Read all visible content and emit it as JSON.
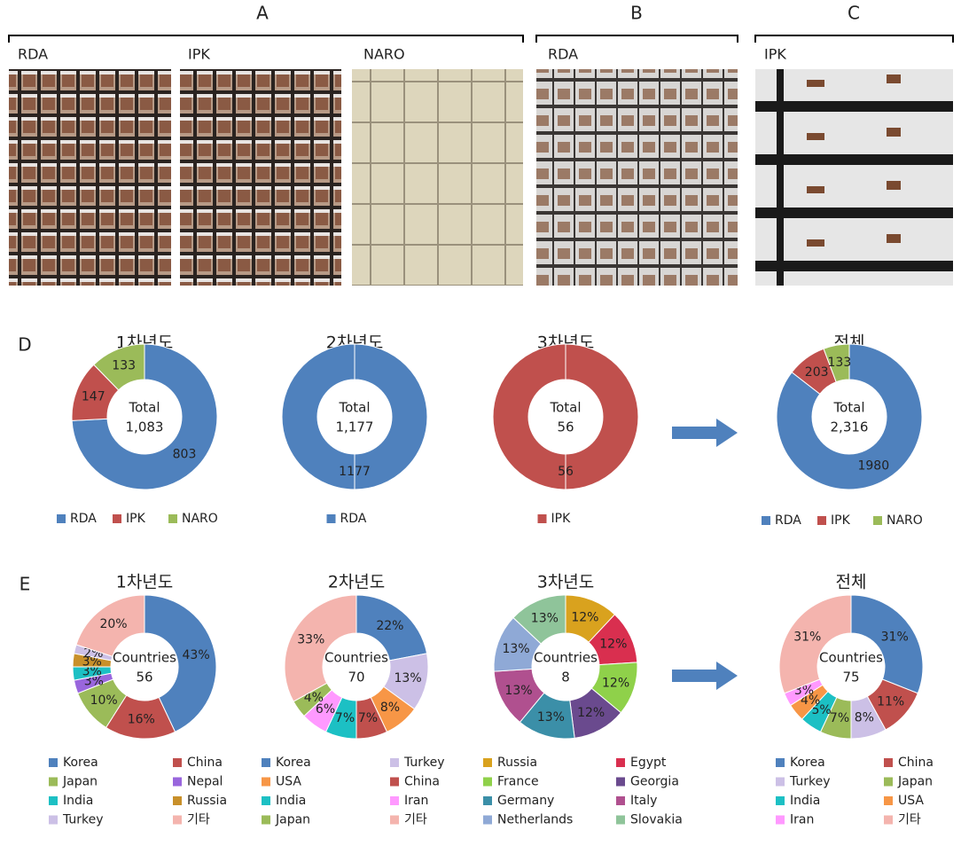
{
  "panel_labels": [
    "A",
    "B",
    "C",
    "D",
    "E"
  ],
  "photo_labels": [
    "RDA",
    "IPK",
    "NARO",
    "RDA",
    "IPK"
  ],
  "chart_data": [
    {
      "type": "donut",
      "title": "1차년도",
      "center_label": "Total",
      "center_value": {
        "value": 1083,
        "label": "1,083"
      },
      "categories": [
        "RDA",
        "IPK",
        "NARO"
      ],
      "values": [
        803,
        147,
        133
      ],
      "colors": [
        "#4f81bd",
        "#c0504d",
        "#9bbb59"
      ],
      "legend": "row"
    },
    {
      "type": "donut",
      "title": "2차년도",
      "center_label": "Total",
      "center_value": {
        "value": 1177,
        "label": "1,177"
      },
      "categories": [
        "RDA"
      ],
      "values": [
        1177
      ],
      "colors": [
        "#4f81bd"
      ],
      "legend": "row"
    },
    {
      "type": "donut",
      "title": "3차년도",
      "center_label": "Total",
      "center_value": 56,
      "categories": [
        "IPK"
      ],
      "values": [
        56
      ],
      "colors": [
        "#c0504d"
      ],
      "legend": "row"
    },
    {
      "type": "donut",
      "title": "전체",
      "center_label": "Total",
      "center_value": {
        "value": 2316,
        "label": "2,316"
      },
      "categories": [
        "RDA",
        "IPK",
        "NARO"
      ],
      "values": [
        1980,
        203,
        133
      ],
      "colors": [
        "#4f81bd",
        "#c0504d",
        "#9bbb59"
      ],
      "legend": "row"
    },
    {
      "type": "donut",
      "title": "1차년도",
      "center_label": "Countries",
      "center_value": 56,
      "categories": [
        "Korea",
        "China",
        "Japan",
        "Nepal",
        "India",
        "Russia",
        "Turkey",
        "기타"
      ],
      "values": [
        43,
        16,
        10,
        3,
        3,
        3,
        2,
        20
      ],
      "value_labels": [
        "43%",
        "16%",
        "10%",
        "3%",
        "3%",
        "3%",
        "2%",
        "20%"
      ],
      "colors": [
        "#4f81bd",
        "#c0504d",
        "#9bbb59",
        "#9966dd",
        "#1cc0c4",
        "#c8902a",
        "#ccc0e6",
        "#f4b4ae"
      ],
      "legend": "grid"
    },
    {
      "type": "donut",
      "title": "2차년도",
      "center_label": "Countries",
      "center_value": 70,
      "categories": [
        "Korea",
        "Turkey",
        "USA",
        "China",
        "India",
        "Iran",
        "Japan",
        "기타"
      ],
      "values": [
        22,
        13,
        8,
        7,
        7,
        6,
        4,
        33
      ],
      "value_labels": [
        "22%",
        "13%",
        "8%",
        "7%",
        "7%",
        "6%",
        "4%",
        "33%"
      ],
      "colors": [
        "#4f81bd",
        "#ccc0e6",
        "#f79646",
        "#c0504d",
        "#1cc0c4",
        "#ff99ff",
        "#9bbb59",
        "#f4b4ae"
      ],
      "legend": "grid"
    },
    {
      "type": "donut",
      "title": "3차년도",
      "center_label": "Countries",
      "center_value": 8,
      "categories": [
        "Russia",
        "Egypt",
        "France",
        "Georgia",
        "Germany",
        "Italy",
        "Netherlands",
        "Slovakia"
      ],
      "values": [
        12,
        12,
        12,
        12,
        13,
        13,
        13,
        13
      ],
      "value_labels": [
        "12%",
        "12%",
        "12%",
        "12%",
        "13%",
        "13%",
        "13%",
        "13%"
      ],
      "colors": [
        "#d9a21e",
        "#d92f4f",
        "#8fd14a",
        "#6a4a8e",
        "#3b8fa8",
        "#b0508f",
        "#8fa9d6",
        "#8fc49a"
      ],
      "legend": "grid"
    },
    {
      "type": "donut",
      "title": "전체",
      "center_label": "Countries",
      "center_value": 75,
      "categories": [
        "Korea",
        "China",
        "Turkey",
        "Japan",
        "India",
        "USA",
        "Iran",
        "기타"
      ],
      "values": [
        31,
        11,
        8,
        7,
        5,
        4,
        3,
        31
      ],
      "value_labels": [
        "31%",
        "11%",
        "8%",
        "7%",
        "5%",
        "4%",
        "3%",
        "31%"
      ],
      "colors": [
        "#4f81bd",
        "#c0504d",
        "#ccc0e6",
        "#9bbb59",
        "#1cc0c4",
        "#f79646",
        "#ff99ff",
        "#f4b4ae"
      ],
      "legend": "grid"
    }
  ]
}
